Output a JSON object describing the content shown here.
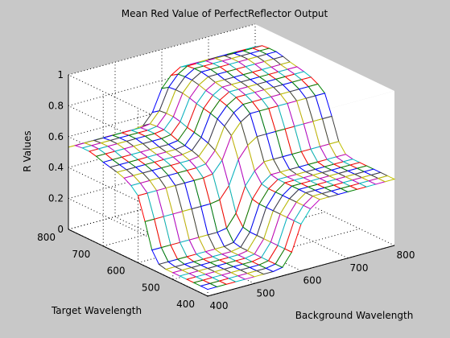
{
  "figure": {
    "background": "#c8c8c8",
    "axes_background": "#ffffff"
  },
  "chart_data": {
    "type": "mesh3d",
    "title": "Mean Red Value of PerfectReflector Output",
    "xlabel": "Background Wavelength",
    "ylabel": "Target Wavelength",
    "zlabel": "R Values",
    "xlim": [
      400,
      800
    ],
    "ylim": [
      400,
      800
    ],
    "zlim": [
      0,
      1
    ],
    "xticks": [
      "400",
      "500",
      "600",
      "700",
      "800"
    ],
    "yticks": [
      "400",
      "500",
      "600",
      "700",
      "800"
    ],
    "zticks": [
      "0",
      "0.2",
      "0.4",
      "0.6",
      "0.8",
      "1"
    ],
    "grid": true,
    "background_wavelength": [
      400,
      420,
      440,
      460,
      480,
      500,
      520,
      540,
      560,
      580,
      600,
      620,
      640,
      660,
      680,
      700,
      720,
      740,
      760,
      780,
      800
    ],
    "target_wavelength": [
      400,
      420,
      440,
      460,
      480,
      500,
      520,
      540,
      560,
      580,
      600,
      620,
      640,
      660,
      680,
      700,
      720,
      740,
      760,
      780,
      800
    ],
    "r_values_row_profile": [
      0.08,
      0.08,
      0.08,
      0.08,
      0.08,
      0.08,
      0.08,
      0.08,
      0.1,
      0.25,
      0.55,
      0.7,
      0.78,
      0.78,
      0.78,
      0.78,
      0.78,
      0.78,
      0.78,
      0.78,
      0.78
    ],
    "r_values_col_profile": [
      0.0,
      0.0,
      0.0,
      0.0,
      0.0,
      0.0,
      0.0,
      0.02,
      0.15,
      0.45,
      0.72,
      0.8,
      0.85,
      0.88,
      0.9,
      0.92,
      0.95,
      0.97,
      0.97,
      0.96,
      0.9
    ],
    "color_order": [
      "#0000ff",
      "#008000",
      "#ff0000",
      "#00bfbf",
      "#bf00bf",
      "#bfbf00",
      "#404040"
    ]
  }
}
